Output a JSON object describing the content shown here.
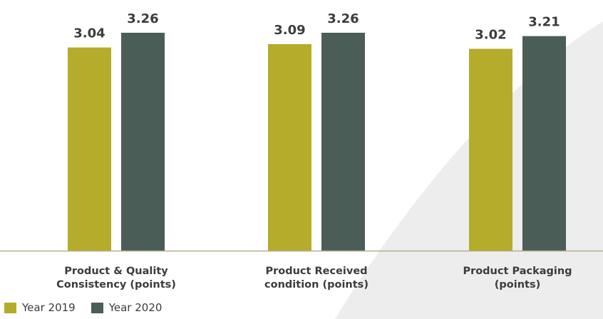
{
  "chart_data": {
    "type": "bar",
    "title": "",
    "xlabel": "",
    "ylabel": "",
    "categories": [
      [
        "Product & Quality",
        "Consistency (points)"
      ],
      [
        "Product Received",
        "condition (points)"
      ],
      [
        "Product Packaging",
        "(points)"
      ]
    ],
    "series": [
      {
        "name": "Year 2019",
        "color": "#b5ac2b",
        "values": [
          3.04,
          3.09,
          3.02
        ],
        "labels": [
          "3.04",
          "3.09",
          "3.02"
        ]
      },
      {
        "name": "Year 2020",
        "color": "#4a5d57",
        "values": [
          3.26,
          3.26,
          3.21
        ],
        "labels": [
          "3.26",
          "3.26",
          "3.21"
        ]
      }
    ],
    "ylim": [
      0,
      3.26
    ],
    "grid": false,
    "legend_position": "bottom-left",
    "background_swoosh_color": "#ededed",
    "axis_color": "#b5ad8c"
  }
}
